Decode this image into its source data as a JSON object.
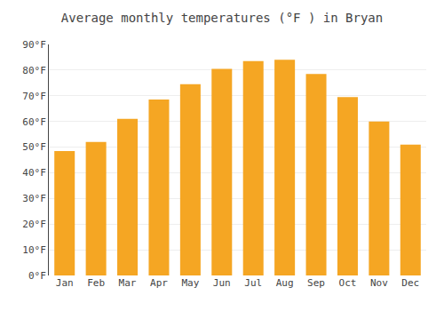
{
  "chart_data": {
    "type": "bar",
    "title": "Average monthly temperatures (°F ) in Bryan",
    "categories": [
      "Jan",
      "Feb",
      "Mar",
      "Apr",
      "May",
      "Jun",
      "Jul",
      "Aug",
      "Sep",
      "Oct",
      "Nov",
      "Dec"
    ],
    "values": [
      48.5,
      52.0,
      61.0,
      68.5,
      74.5,
      80.5,
      83.5,
      84.0,
      78.5,
      69.5,
      60.0,
      51.0
    ],
    "color": "#F5A623",
    "ylim": [
      0,
      90
    ],
    "yticks": [
      {
        "value": 0,
        "label": "0°F"
      },
      {
        "value": 10,
        "label": "10°F"
      },
      {
        "value": 20,
        "label": "20°F"
      },
      {
        "value": 30,
        "label": "30°F"
      },
      {
        "value": 40,
        "label": "40°F"
      },
      {
        "value": 50,
        "label": "50°F"
      },
      {
        "value": 60,
        "label": "60°F"
      },
      {
        "value": 70,
        "label": "70°F"
      },
      {
        "value": 80,
        "label": "80°F"
      },
      {
        "value": 90,
        "label": "90°F"
      }
    ],
    "grid": true
  }
}
